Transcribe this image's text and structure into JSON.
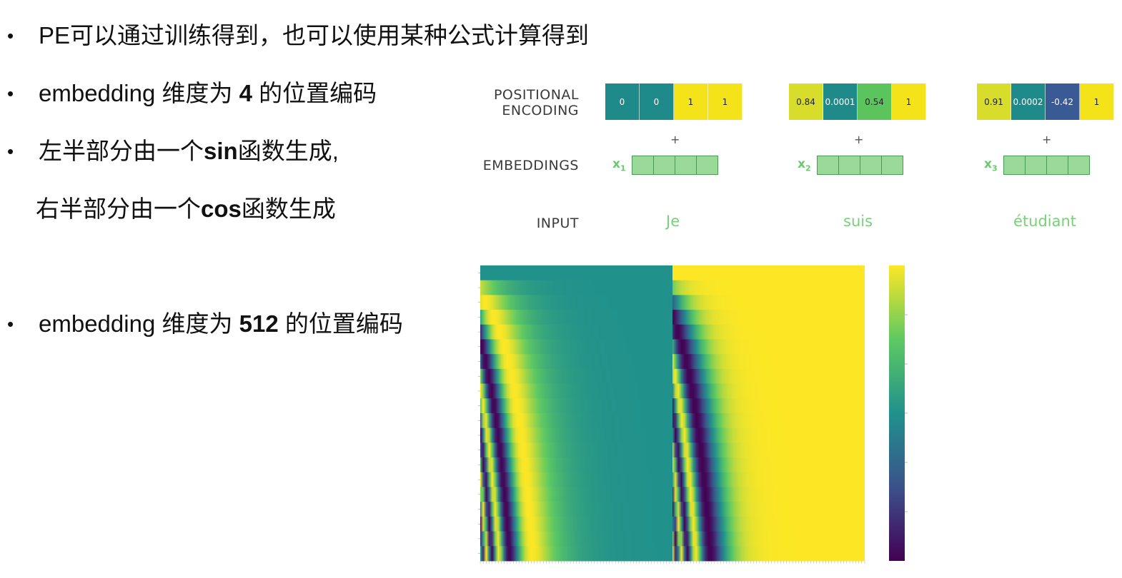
{
  "bullets": [
    {
      "dot": "•",
      "pre": "PE可以通过训练得到，也可以使用某种公式计算得到",
      "bold": "",
      "post": ""
    },
    {
      "dot": "•",
      "pre": "embedding 维度为 ",
      "bold": "4",
      "post": " 的位置编码"
    },
    {
      "dot": "•",
      "pre": "左半部分由一个",
      "bold": "sin",
      "post": "函数生成,"
    },
    {
      "dot": "",
      "pre": "右半部分由一个",
      "bold": "cos",
      "post": "函数生成"
    },
    {
      "dot": "•",
      "pre": "embedding 维度为 ",
      "bold": "512",
      "post": " 的位置编码"
    }
  ],
  "diagram": {
    "label_pe_line1": "POSITIONAL",
    "label_pe_line2": "ENCODING",
    "label_emb": "EMBEDDINGS",
    "label_input": "INPUT",
    "plus": "+",
    "tokens": [
      {
        "x": "x",
        "sub": "1",
        "word": "Je",
        "pe": [
          {
            "v": "0",
            "c": "#1f8a8a",
            "dark": true
          },
          {
            "v": "0",
            "c": "#1f8a8a",
            "dark": true
          },
          {
            "v": "1",
            "c": "#f4e318",
            "dark": false
          },
          {
            "v": "1",
            "c": "#f4e318",
            "dark": false
          }
        ]
      },
      {
        "x": "x",
        "sub": "2",
        "word": "suis",
        "pe": [
          {
            "v": "0.84",
            "c": "#d8dc2a",
            "dark": false
          },
          {
            "v": "0.0001",
            "c": "#1f8a8a",
            "dark": true
          },
          {
            "v": "0.54",
            "c": "#5cc45c",
            "dark": false
          },
          {
            "v": "1",
            "c": "#f4e318",
            "dark": false
          }
        ]
      },
      {
        "x": "x",
        "sub": "3",
        "word": "étudiant",
        "pe": [
          {
            "v": "0.91",
            "c": "#d8dc2a",
            "dark": false
          },
          {
            "v": "0.0002",
            "c": "#1f8a8a",
            "dark": true
          },
          {
            "v": "-0.42",
            "c": "#3a5a95",
            "dark": true
          },
          {
            "v": "1",
            "c": "#f4e318",
            "dark": false
          }
        ]
      }
    ]
  },
  "heatmap": {
    "positions": 20,
    "dimensions": 512,
    "value_range": [
      -1,
      1
    ],
    "colormap": [
      "#440154",
      "#3b528b",
      "#21918c",
      "#5ec962",
      "#fde725"
    ],
    "left_half": "sin",
    "right_half": "cos"
  }
}
